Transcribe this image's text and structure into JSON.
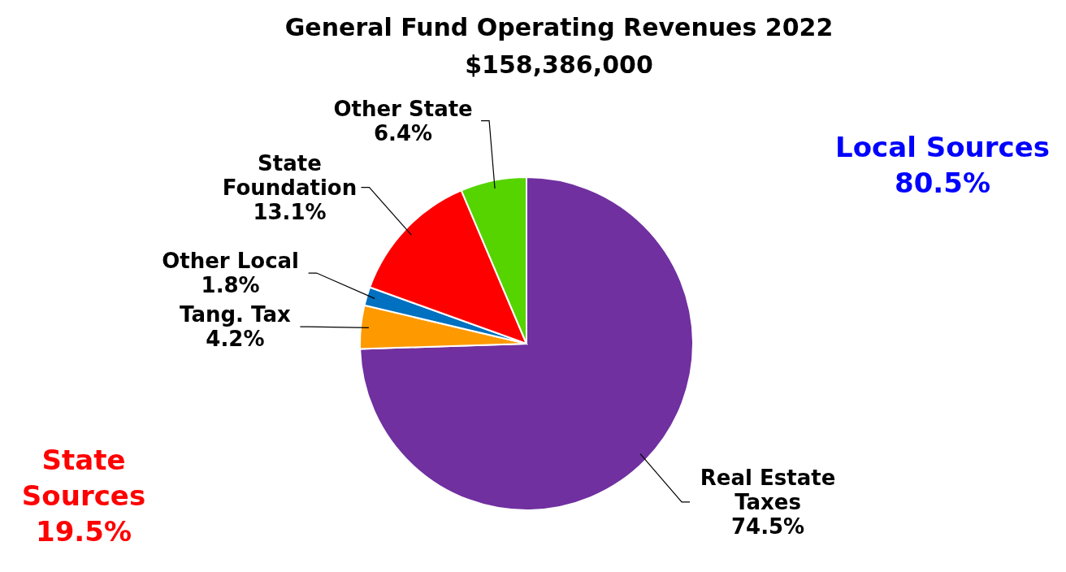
{
  "chart_data": {
    "type": "pie",
    "title": "General Fund Operating Revenues 2022",
    "subtitle": "$158,386,000",
    "categories": [
      "Real Estate Taxes",
      "Tang. Tax",
      "Other Local",
      "State Foundation",
      "Other State"
    ],
    "values": [
      74.5,
      4.2,
      1.8,
      13.1,
      6.4
    ],
    "value_labels": [
      "74.5%",
      "4.2%",
      "1.8%",
      "13.1%",
      "6.4%"
    ],
    "colors": [
      "#7030a0",
      "#ff9900",
      "#0070c0",
      "#ff0000",
      "#55d400"
    ],
    "annotations": [
      "Local Sources 80.5%",
      "State Sources 19.5%"
    ]
  }
}
